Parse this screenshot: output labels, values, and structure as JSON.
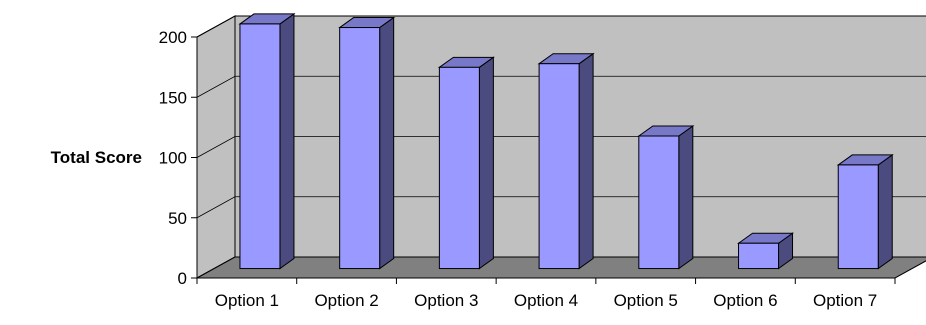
{
  "chart_data": {
    "type": "bar",
    "categories": [
      "Option 1",
      "Option 2",
      "Option 3",
      "Option 4",
      "Option 5",
      "Option 6",
      "Option 7"
    ],
    "values": [
      203,
      200,
      167,
      170,
      110,
      21,
      86
    ],
    "title": "",
    "xlabel": "",
    "ylabel": "Total Score",
    "ylim": [
      0,
      200
    ],
    "yticks": [
      0,
      50,
      100,
      150,
      200
    ],
    "grid": true,
    "legend": "none",
    "colors": {
      "bar_front": "#9999ff",
      "bar_side": "#4b4b80",
      "bar_top": "#7878c8",
      "wall": "#c0c0c0",
      "floor": "#808080",
      "gridline": "#000000"
    }
  }
}
